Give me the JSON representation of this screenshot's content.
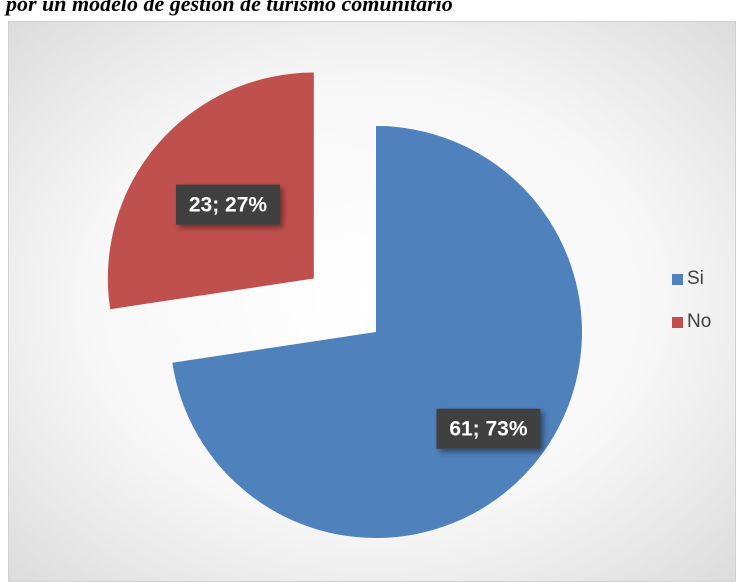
{
  "caption": "por un modelo de gestión de turismo comunitario",
  "chart_data": {
    "type": "pie",
    "categories": [
      "Si",
      "No"
    ],
    "values": [
      61,
      23
    ],
    "percentages": [
      73,
      27
    ],
    "data_labels": [
      "61; 73%",
      "23; 27%"
    ],
    "colors": [
      "#4F81BD",
      "#C0504D"
    ],
    "exploded": true,
    "legend": "right"
  }
}
